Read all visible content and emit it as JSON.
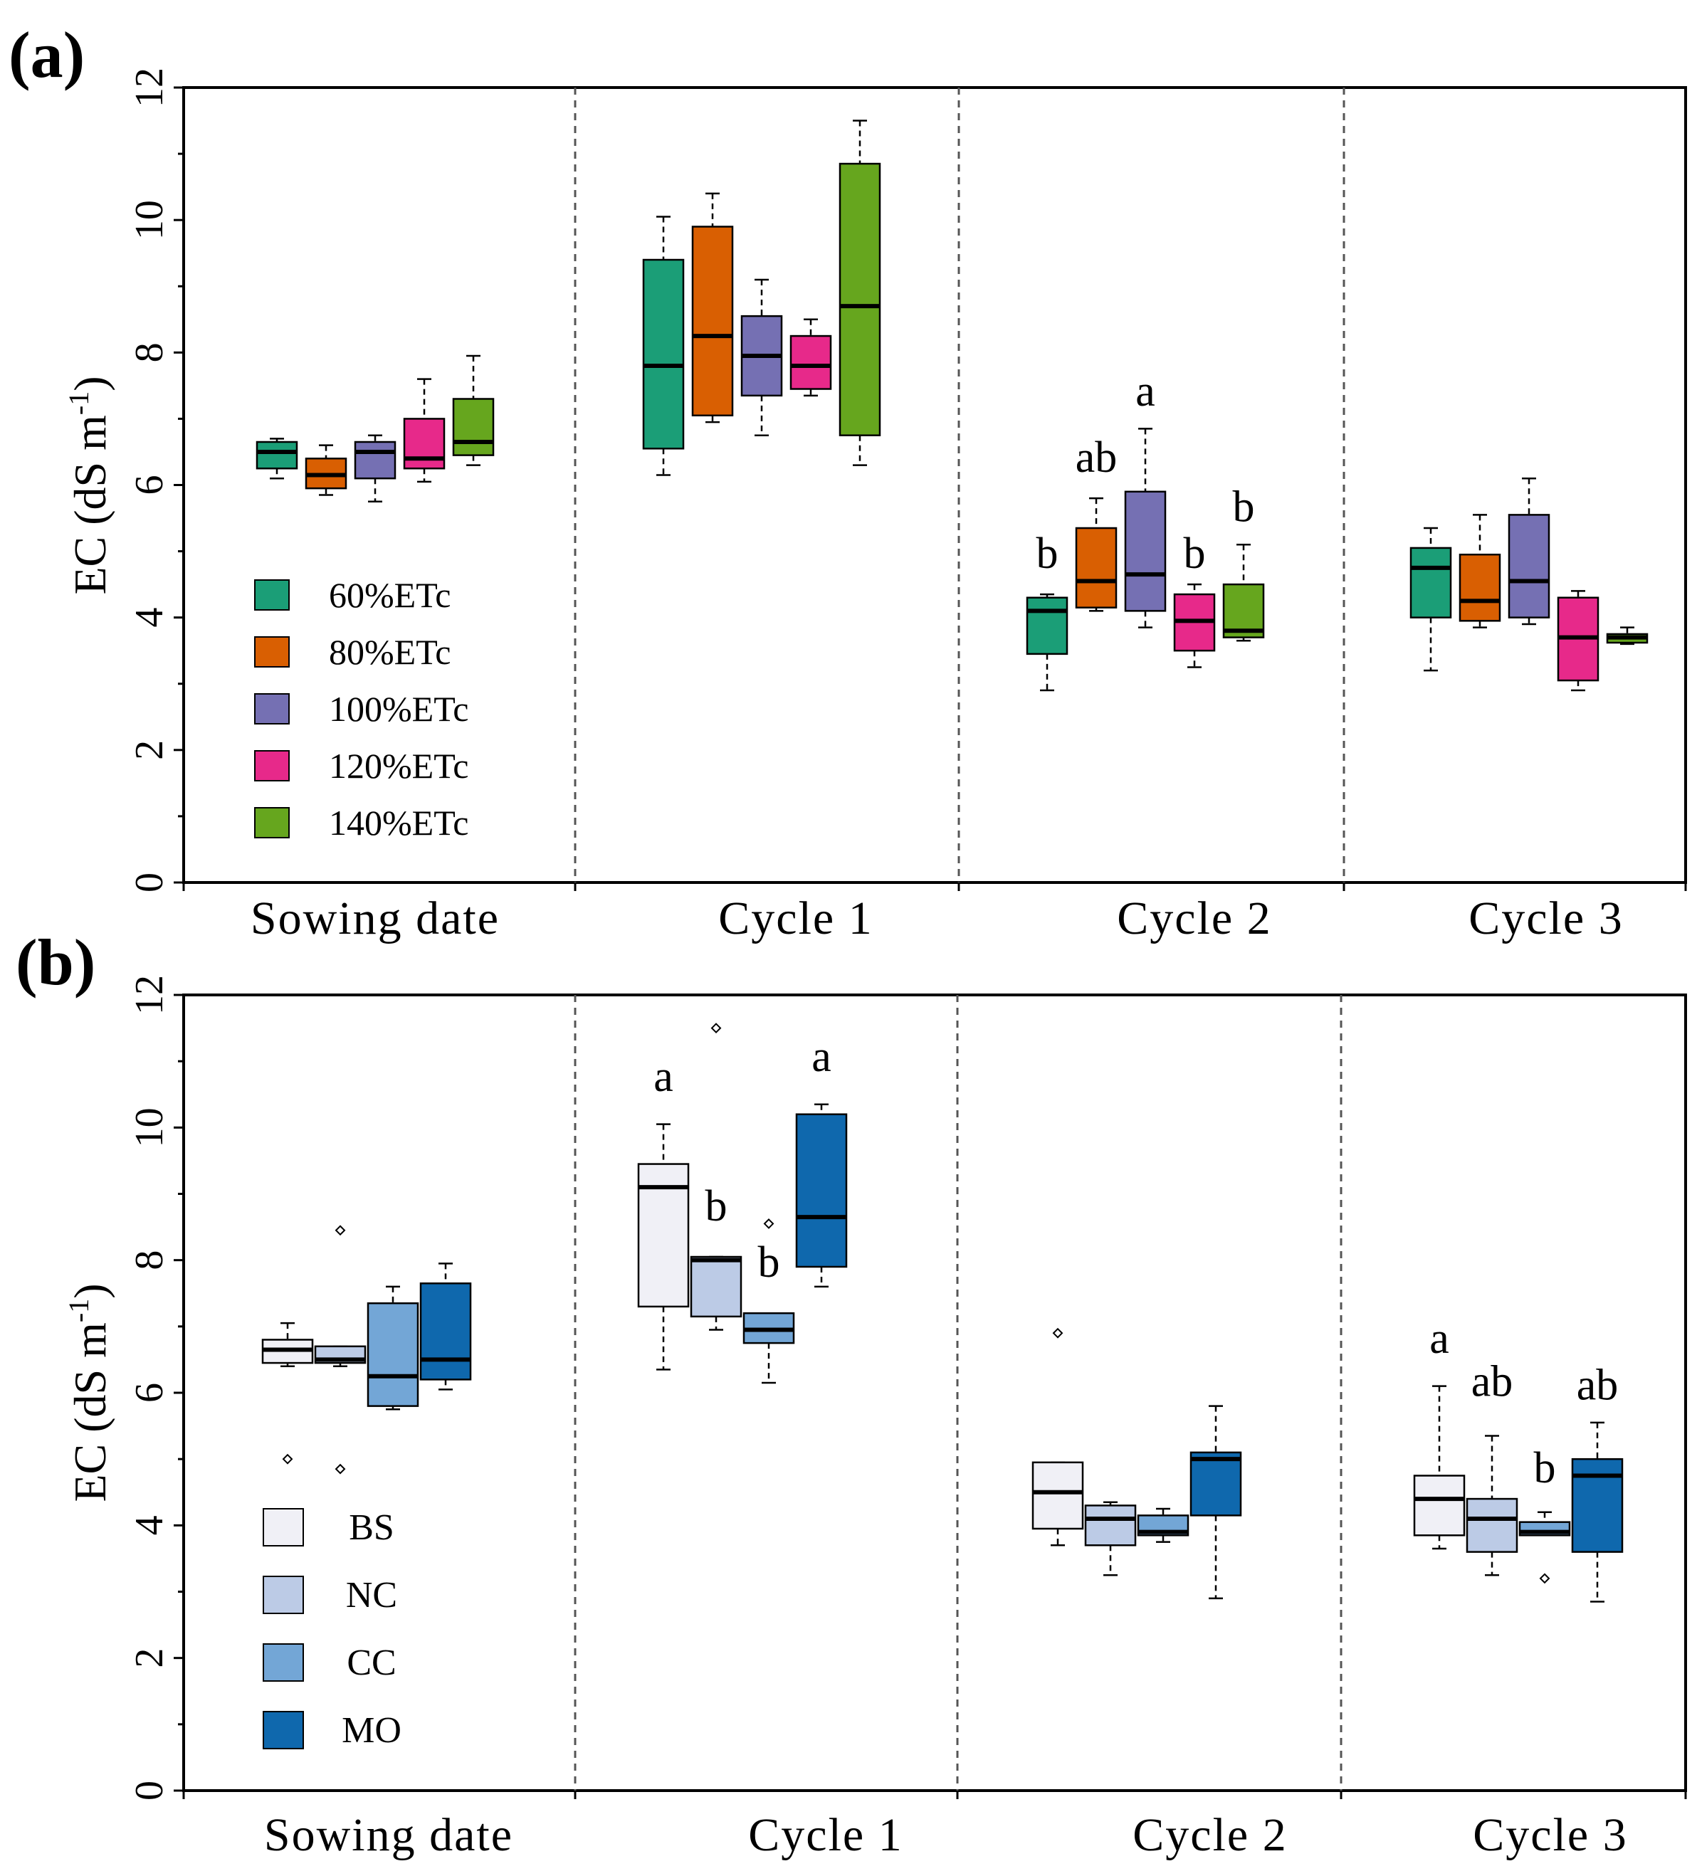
{
  "chart_data": [
    {
      "type": "boxplot",
      "panel_label": "(a)",
      "ylabel_main": "EC (dS m",
      "ylabel_sup": "-1",
      "ylabel_tail": ")",
      "ylim": [
        0,
        12
      ],
      "yticks": [
        "0",
        "2",
        "4",
        "6",
        "8",
        "10",
        "12"
      ],
      "groups": [
        "Sowing date",
        "Cycle 1",
        "Cycle 2",
        "Cycle 3"
      ],
      "series": [
        {
          "name": "60%ETc",
          "color": "#1b9e77",
          "boxes": [
            {
              "low": 6.1,
              "q1": 6.25,
              "median": 6.5,
              "q3": 6.65,
              "high": 6.7
            },
            {
              "low": 6.15,
              "q1": 6.55,
              "median": 7.8,
              "q3": 9.4,
              "high": 10.05
            },
            {
              "low": 2.9,
              "q1": 3.45,
              "median": 4.1,
              "q3": 4.3,
              "high": 4.35
            },
            {
              "low": 3.2,
              "q1": 4.0,
              "median": 4.75,
              "q3": 5.05,
              "high": 5.35
            }
          ]
        },
        {
          "name": "80%ETc",
          "color": "#d95f02",
          "boxes": [
            {
              "low": 5.85,
              "q1": 5.95,
              "median": 6.15,
              "q3": 6.4,
              "high": 6.6
            },
            {
              "low": 6.95,
              "q1": 7.05,
              "median": 8.25,
              "q3": 9.9,
              "high": 10.4
            },
            {
              "low": 4.1,
              "q1": 4.15,
              "median": 4.55,
              "q3": 5.35,
              "high": 5.8
            },
            {
              "low": 3.85,
              "q1": 3.95,
              "median": 4.25,
              "q3": 4.95,
              "high": 5.55
            }
          ]
        },
        {
          "name": "100%ETc",
          "color": "#7570b3",
          "boxes": [
            {
              "low": 5.75,
              "q1": 6.1,
              "median": 6.5,
              "q3": 6.65,
              "high": 6.75
            },
            {
              "low": 6.75,
              "q1": 7.35,
              "median": 7.95,
              "q3": 8.55,
              "high": 9.1
            },
            {
              "low": 3.85,
              "q1": 4.1,
              "median": 4.65,
              "q3": 5.9,
              "high": 6.85
            },
            {
              "low": 3.9,
              "q1": 4.0,
              "median": 4.55,
              "q3": 5.55,
              "high": 6.1
            }
          ]
        },
        {
          "name": "120%ETc",
          "color": "#e7298a",
          "boxes": [
            {
              "low": 6.05,
              "q1": 6.25,
              "median": 6.4,
              "q3": 7.0,
              "high": 7.6
            },
            {
              "low": 7.35,
              "q1": 7.45,
              "median": 7.8,
              "q3": 8.25,
              "high": 8.5
            },
            {
              "low": 3.25,
              "q1": 3.5,
              "median": 3.95,
              "q3": 4.35,
              "high": 4.5
            },
            {
              "low": 2.9,
              "q1": 3.05,
              "median": 3.7,
              "q3": 4.3,
              "high": 4.4
            }
          ]
        },
        {
          "name": "140%ETc",
          "color": "#66a61e",
          "boxes": [
            {
              "low": 6.3,
              "q1": 6.45,
              "median": 6.65,
              "q3": 7.3,
              "high": 7.95
            },
            {
              "low": 6.3,
              "q1": 6.75,
              "median": 8.7,
              "q3": 10.85,
              "high": 11.5
            },
            {
              "low": 3.65,
              "q1": 3.7,
              "median": 3.8,
              "q3": 4.5,
              "high": 5.1
            },
            {
              "low": 3.6,
              "q1": 3.62,
              "median": 3.7,
              "q3": 3.75,
              "high": 3.85
            }
          ]
        }
      ],
      "outliers": [],
      "annotations": [
        {
          "group": 2,
          "series": 0,
          "text": "b",
          "value": 4.75
        },
        {
          "group": 2,
          "series": 1,
          "text": "ab",
          "value": 6.2
        },
        {
          "group": 2,
          "series": 2,
          "text": "a",
          "value": 7.2
        },
        {
          "group": 2,
          "series": 3,
          "text": "b",
          "value": 4.75
        },
        {
          "group": 2,
          "series": 4,
          "text": "b",
          "value": 5.45
        }
      ],
      "legend": {
        "position": "lower-left"
      }
    },
    {
      "type": "boxplot",
      "panel_label": "(b)",
      "ylabel_main": "EC (dS m",
      "ylabel_sup": "-1",
      "ylabel_tail": ")",
      "ylim": [
        0,
        12
      ],
      "yticks": [
        "0",
        "2",
        "4",
        "6",
        "8",
        "10",
        "12"
      ],
      "groups": [
        "Sowing date",
        "Cycle 1",
        "Cycle 2",
        "Cycle 3"
      ],
      "series": [
        {
          "name": "BS",
          "color": "#f0f0f6",
          "boxes": [
            {
              "low": 6.4,
              "q1": 6.45,
              "median": 6.65,
              "q3": 6.8,
              "high": 7.05
            },
            {
              "low": 6.35,
              "q1": 7.3,
              "median": 9.1,
              "q3": 9.45,
              "high": 10.05
            },
            {
              "low": 3.7,
              "q1": 3.95,
              "median": 4.5,
              "q3": 4.95,
              "high": 4.95
            },
            {
              "low": 3.65,
              "q1": 3.85,
              "median": 4.4,
              "q3": 4.75,
              "high": 6.1
            }
          ]
        },
        {
          "name": "NC",
          "color": "#bccbe6",
          "boxes": [
            {
              "low": 6.4,
              "q1": 6.45,
              "median": 6.5,
              "q3": 6.7,
              "high": 6.7
            },
            {
              "low": 6.95,
              "q1": 7.15,
              "median": 8.0,
              "q3": 8.05,
              "high": 8.05
            },
            {
              "low": 3.25,
              "q1": 3.7,
              "median": 4.1,
              "q3": 4.3,
              "high": 4.35
            },
            {
              "low": 3.25,
              "q1": 3.6,
              "median": 4.1,
              "q3": 4.4,
              "high": 5.35
            }
          ]
        },
        {
          "name": "CC",
          "color": "#73a6d6",
          "boxes": [
            {
              "low": 5.75,
              "q1": 5.8,
              "median": 6.25,
              "q3": 7.35,
              "high": 7.6
            },
            {
              "low": 6.15,
              "q1": 6.75,
              "median": 6.95,
              "q3": 7.2,
              "high": 7.2
            },
            {
              "low": 3.75,
              "q1": 3.85,
              "median": 3.9,
              "q3": 4.15,
              "high": 4.25
            },
            {
              "low": 3.85,
              "q1": 3.85,
              "median": 3.9,
              "q3": 4.05,
              "high": 4.2
            }
          ]
        },
        {
          "name": "MO",
          "color": "#0f68ad",
          "boxes": [
            {
              "low": 6.05,
              "q1": 6.2,
              "median": 6.5,
              "q3": 7.65,
              "high": 7.95
            },
            {
              "low": 7.6,
              "q1": 7.9,
              "median": 8.65,
              "q3": 10.2,
              "high": 10.35
            },
            {
              "low": 2.9,
              "q1": 4.15,
              "median": 5.0,
              "q3": 5.1,
              "high": 5.8
            },
            {
              "low": 2.85,
              "q1": 3.6,
              "median": 4.75,
              "q3": 5.0,
              "high": 5.55
            }
          ]
        }
      ],
      "outliers": [
        {
          "group": 0,
          "series": 0,
          "value": 5.0
        },
        {
          "group": 0,
          "series": 1,
          "value": 8.45
        },
        {
          "group": 0,
          "series": 1,
          "value": 4.85
        },
        {
          "group": 1,
          "series": 1,
          "value": 11.5
        },
        {
          "group": 1,
          "series": 2,
          "value": 8.55
        },
        {
          "group": 2,
          "series": 0,
          "value": 6.9
        },
        {
          "group": 3,
          "series": 2,
          "value": 3.2
        }
      ],
      "annotations": [
        {
          "group": 1,
          "series": 0,
          "text": "a",
          "value": 10.55
        },
        {
          "group": 1,
          "series": 1,
          "text": "b",
          "value": 8.6
        },
        {
          "group": 1,
          "series": 2,
          "text": "b",
          "value": 7.75
        },
        {
          "group": 1,
          "series": 3,
          "text": "a",
          "value": 10.85
        },
        {
          "group": 3,
          "series": 0,
          "text": "a",
          "value": 6.6
        },
        {
          "group": 3,
          "series": 1,
          "text": "ab",
          "value": 5.95
        },
        {
          "group": 3,
          "series": 2,
          "text": "b",
          "value": 4.65
        },
        {
          "group": 3,
          "series": 3,
          "text": "ab",
          "value": 5.9
        }
      ],
      "legend": {
        "position": "lower-left"
      }
    }
  ]
}
